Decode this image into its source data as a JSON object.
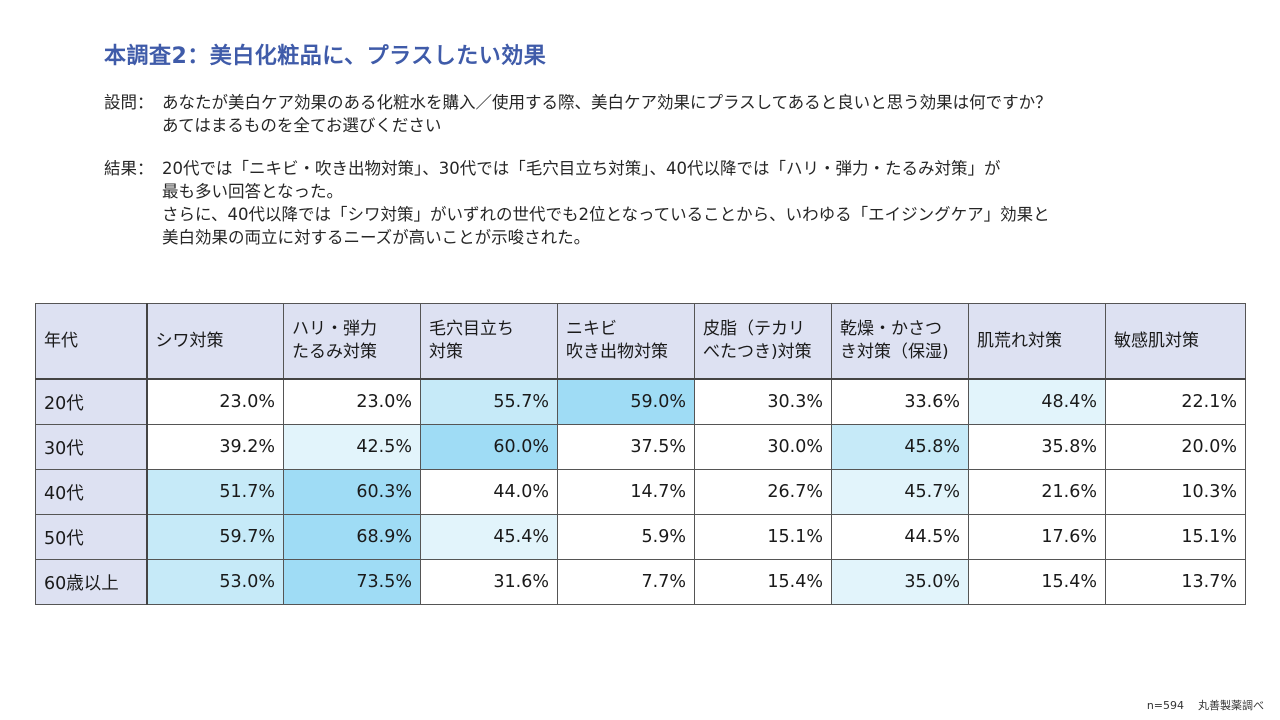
{
  "title": "本調査2：美白化粧品に、プラスしたい効果",
  "question": {
    "label": "設問：",
    "lines": [
      "あなたが美白ケア効果のある化粧水を購入／使用する際、美白ケア効果にプラスしてあると良いと思う効果は何ですか？",
      "あてはまるものを全てお選びください"
    ]
  },
  "result": {
    "label": "結果：",
    "lines": [
      "20代では「ニキビ・吹き出物対策」、30代では「毛穴目立ち対策」、40代以降では「ハリ・弾力・たるみ対策」が",
      "最も多い回答となった。",
      "さらに、40代以降では「シワ対策」がいずれの世代でも2位となっていることから、いわゆる「エイジングケア」効果と",
      "美白効果の両立に対するニーズが高いことが示唆された。"
    ]
  },
  "table": {
    "headers": [
      [
        "年代"
      ],
      [
        "シワ対策"
      ],
      [
        "ハリ・弾力",
        "たるみ対策"
      ],
      [
        "毛穴目立ち",
        "対策"
      ],
      [
        "ニキビ",
        "吹き出物対策"
      ],
      [
        "皮脂（テカリ",
        "べたつき)対策"
      ],
      [
        "乾燥・かさつ",
        "き対策（保湿)"
      ],
      [
        "肌荒れ対策"
      ],
      [
        "敏感肌対策"
      ]
    ],
    "rows": [
      {
        "age": "20代",
        "values": [
          "23.0%",
          "23.0%",
          "55.7%",
          "59.0%",
          "30.3%",
          "33.6%",
          "48.4%",
          "22.1%"
        ]
      },
      {
        "age": "30代",
        "values": [
          "39.2%",
          "42.5%",
          "60.0%",
          "37.5%",
          "30.0%",
          "45.8%",
          "35.8%",
          "20.0%"
        ]
      },
      {
        "age": "40代",
        "values": [
          "51.7%",
          "60.3%",
          "44.0%",
          "14.7%",
          "26.7%",
          "45.7%",
          "21.6%",
          "10.3%"
        ]
      },
      {
        "age": "50代",
        "values": [
          "59.7%",
          "68.9%",
          "45.4%",
          "5.9%",
          "15.1%",
          "44.5%",
          "17.6%",
          "15.1%"
        ]
      },
      {
        "age": "60歳以上",
        "values": [
          "53.0%",
          "73.5%",
          "31.6%",
          "7.7%",
          "15.4%",
          "35.0%",
          "15.4%",
          "13.7%"
        ]
      }
    ],
    "highlight_colors": {
      "rank1": "#9fdcf5",
      "rank2": "#c6eaf8",
      "rank3": "#e2f4fb",
      "header_bg": "#dde1f2"
    },
    "cell_rank": [
      [
        0,
        0,
        2,
        1,
        0,
        0,
        3,
        0
      ],
      [
        0,
        3,
        1,
        0,
        0,
        2,
        0,
        0
      ],
      [
        2,
        1,
        0,
        0,
        0,
        3,
        0,
        0
      ],
      [
        2,
        1,
        3,
        0,
        0,
        0,
        0,
        0
      ],
      [
        2,
        1,
        0,
        0,
        0,
        3,
        0,
        0
      ]
    ]
  },
  "footer": {
    "sample": "n=594",
    "source": "丸善製薬調べ"
  }
}
